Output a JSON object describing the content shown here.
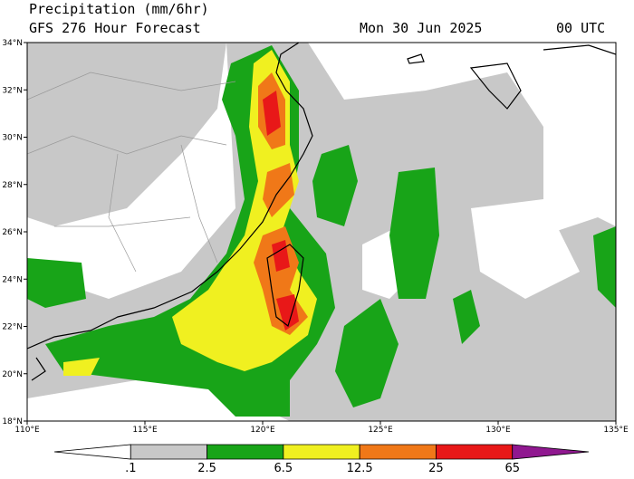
{
  "header": {
    "title": "Precipitation (mm/6hr)",
    "subtitle": "GFS 276 Hour Forecast",
    "date": "Mon 30 Jun 2025",
    "time": "00 UTC"
  },
  "map": {
    "lat_labels": [
      "18°N",
      "20°N",
      "22°N",
      "24°N",
      "26°N",
      "28°N",
      "30°N",
      "32°N",
      "34°N"
    ],
    "lon_labels": [
      "110°E",
      "115°E",
      "120°E",
      "125°E",
      "130°E",
      "135°E"
    ]
  },
  "colorbar": {
    "labels": [
      ".1",
      "2.5",
      "6.5",
      "12.5",
      "25",
      "65"
    ],
    "colors": [
      "#ffffff",
      "#c8c8c8",
      "#18a418",
      "#f0f020",
      "#f07818",
      "#e81818",
      "#901890"
    ]
  }
}
